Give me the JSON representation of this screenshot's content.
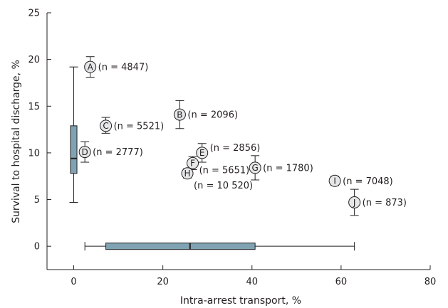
{
  "chart_data": {
    "type": "scatter",
    "xlabel": "Intra-arrest transport, %",
    "ylabel": "Survival to hospital discharge, %",
    "xlim": [
      -6,
      80
    ],
    "ylim": [
      -2.5,
      25
    ],
    "x_ticks": [
      0,
      20,
      40,
      60,
      80
    ],
    "y_ticks": [
      0,
      5,
      10,
      15,
      20,
      25
    ],
    "grid": false,
    "colors": {
      "box_fill": "#7fa3b3",
      "line": "#231f20"
    },
    "points": [
      {
        "label": "A",
        "n": "(n = 4847)",
        "x": 3.7,
        "y": 19.2,
        "y_low": 18.1,
        "y_high": 20.3
      },
      {
        "label": "B",
        "n": "(n = 2096)",
        "x": 23.8,
        "y": 14.1,
        "y_low": 12.6,
        "y_high": 15.6
      },
      {
        "label": "C",
        "n": "(n = 5521)",
        "x": 7.2,
        "y": 12.9,
        "y_low": 12.1,
        "y_high": 13.8
      },
      {
        "label": "D",
        "n": "(n = 2777)",
        "x": 2.5,
        "y": 10.1,
        "y_low": 9.0,
        "y_high": 11.2
      },
      {
        "label": "E",
        "n": "(n = 2856)",
        "x": 28.8,
        "y": 10.0,
        "y_low": 9.0,
        "y_high": 11.0
      },
      {
        "label": "F",
        "n": "(n = 5651)",
        "x": 26.7,
        "y": 8.9,
        "y_low": 8.2,
        "y_high": 9.6
      },
      {
        "label": "G",
        "n": "(n = 1780)",
        "x": 40.7,
        "y": 8.4,
        "y_low": 7.1,
        "y_high": 9.7
      },
      {
        "label": "H",
        "n": "(n = 10 520)",
        "x": 25.5,
        "y": 7.8,
        "y_low": 7.3,
        "y_high": 8.3
      },
      {
        "label": "I",
        "n": "(n = 7048)",
        "x": 58.6,
        "y": 7.0,
        "y_low": 6.5,
        "y_high": 7.5
      },
      {
        "label": "J",
        "n": "(n = 873)",
        "x": 63.0,
        "y": 4.7,
        "y_low": 3.3,
        "y_high": 6.1
      }
    ],
    "y_boxplot": {
      "x": 0,
      "min": 4.7,
      "q1": 7.8,
      "median": 9.4,
      "q3": 12.9,
      "max": 19.2
    },
    "x_boxplot": {
      "y": 0,
      "min": 2.5,
      "q1": 7.2,
      "median": 26.1,
      "q3": 40.7,
      "max": 63.0
    }
  }
}
